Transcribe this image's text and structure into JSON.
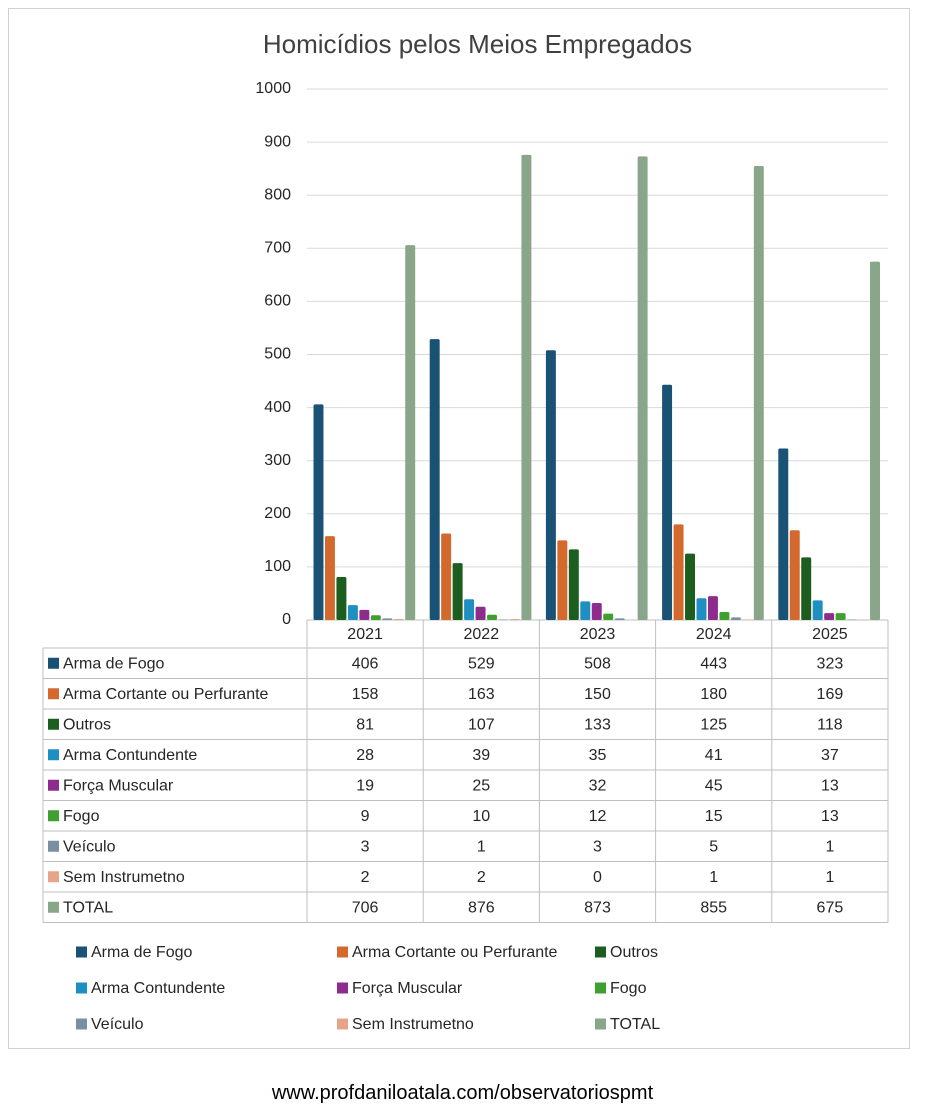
{
  "source_url": "www.profdaniloatala.com/observatoriospmt",
  "chart_data": {
    "type": "bar",
    "title": "Homicídios pelos Meios Empregados",
    "xlabel": "",
    "ylabel": "",
    "ylim": [
      0,
      1000
    ],
    "yticks": [
      0,
      100,
      200,
      300,
      400,
      500,
      600,
      700,
      800,
      900,
      1000
    ],
    "grid": true,
    "legend_position": "bottom",
    "data_table": true,
    "categories": [
      "2021",
      "2022",
      "2023",
      "2024",
      "2025"
    ],
    "series": [
      {
        "name": "Arma de Fogo",
        "color": "#1a5276",
        "values": [
          406,
          529,
          508,
          443,
          323
        ]
      },
      {
        "name": "Arma Cortante ou Perfurante",
        "color": "#d4692e",
        "values": [
          158,
          163,
          150,
          180,
          169
        ]
      },
      {
        "name": "Outros",
        "color": "#1b5e20",
        "values": [
          81,
          107,
          133,
          125,
          118
        ]
      },
      {
        "name": "Arma Contundente",
        "color": "#1f8fc1",
        "values": [
          28,
          39,
          35,
          41,
          37
        ]
      },
      {
        "name": "Força Muscular",
        "color": "#8e2c8e",
        "values": [
          19,
          25,
          32,
          45,
          13
        ]
      },
      {
        "name": "Fogo",
        "color": "#3ea02e",
        "values": [
          9,
          10,
          12,
          15,
          13
        ]
      },
      {
        "name": "Veículo",
        "color": "#7a8fa1",
        "values": [
          3,
          1,
          3,
          5,
          1
        ]
      },
      {
        "name": "Sem Instrumetno",
        "color": "#e8a48a",
        "values": [
          2,
          2,
          0,
          1,
          1
        ]
      },
      {
        "name": "TOTAL",
        "color": "#8aa68a",
        "values": [
          706,
          876,
          873,
          855,
          675
        ]
      }
    ]
  }
}
